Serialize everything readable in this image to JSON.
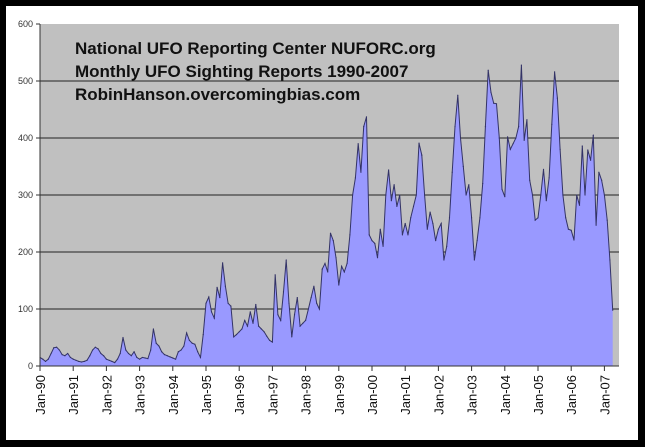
{
  "chart_data": {
    "type": "area",
    "title_lines": [
      "National UFO Reporting Center NUFORC.org",
      "Monthly UFO Sighting Reports 1990-2007",
      "RobinHanson.overcomingbias.com"
    ],
    "xlabel": "",
    "ylabel": "",
    "ylim": [
      0,
      600
    ],
    "yticks": [
      0,
      100,
      200,
      300,
      400,
      500,
      600
    ],
    "y_tick_labels": [
      "0",
      "100",
      "200",
      "300",
      "400",
      "500",
      "600"
    ],
    "grid": true,
    "x_tick_labels": [
      "Jan-90",
      "Jan-91",
      "Jan-92",
      "Jan-93",
      "Jan-94",
      "Jan-95",
      "Jan-96",
      "Jan-97",
      "Jan-98",
      "Jan-99",
      "Jan-00",
      "Jan-01",
      "Jan-02",
      "Jan-03",
      "Jan-04",
      "Jan-05",
      "Jan-06",
      "Jan-07"
    ],
    "start_month": "Jan-90",
    "interval": "monthly",
    "values": [
      15,
      12,
      8,
      12,
      22,
      32,
      33,
      28,
      20,
      18,
      22,
      15,
      12,
      10,
      8,
      7,
      8,
      10,
      18,
      28,
      33,
      30,
      22,
      18,
      12,
      10,
      8,
      6,
      12,
      22,
      50,
      28,
      22,
      18,
      25,
      15,
      12,
      15,
      14,
      13,
      28,
      65,
      40,
      35,
      25,
      20,
      18,
      16,
      14,
      12,
      25,
      28,
      35,
      58,
      45,
      40,
      38,
      25,
      15,
      55,
      110,
      121,
      95,
      84,
      138,
      120,
      181,
      140,
      110,
      105,
      51,
      55,
      60,
      65,
      80,
      70,
      95,
      75,
      108,
      70,
      65,
      60,
      52,
      45,
      42,
      160,
      90,
      80,
      130,
      186,
      110,
      51,
      90,
      120,
      70,
      75,
      80,
      100,
      120,
      140,
      110,
      100,
      170,
      180,
      165,
      233,
      220,
      190,
      142,
      175,
      165,
      180,
      230,
      300,
      330,
      390,
      340,
      420,
      437,
      230,
      220,
      215,
      190,
      240,
      210,
      300,
      344,
      290,
      318,
      280,
      300,
      230,
      250,
      230,
      260,
      280,
      300,
      391,
      370,
      300,
      240,
      270,
      250,
      220,
      240,
      250,
      186,
      210,
      260,
      340,
      420,
      475,
      400,
      350,
      300,
      318,
      260,
      186,
      220,
      260,
      320,
      420,
      519,
      480,
      461,
      460,
      400,
      310,
      297,
      402,
      380,
      390,
      400,
      420,
      528,
      396,
      432,
      326,
      300,
      256,
      260,
      300,
      345,
      290,
      330,
      424,
      516,
      470,
      380,
      300,
      260,
      240,
      238,
      221,
      300,
      282,
      386,
      300,
      379,
      361,
      405,
      247,
      340,
      326,
      300,
      256,
      186,
      98
    ],
    "colors": {
      "fill": "#9999ff",
      "line": "#333366",
      "plot_bg": "#c0c0c0",
      "grid": "#222222"
    }
  }
}
